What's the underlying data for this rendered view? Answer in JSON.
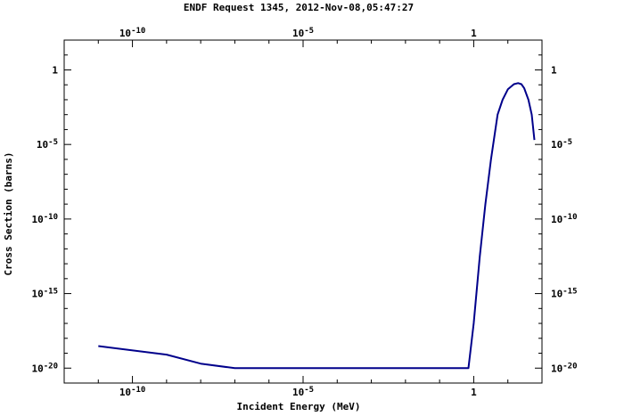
{
  "chart_data": {
    "type": "line",
    "title": "ENDF Request 1345, 2012-Nov-08,05:47:27",
    "xlabel": "Incident Energy (MeV)",
    "ylabel": "Cross Section (barns)",
    "x_scale": "log",
    "y_scale": "log",
    "xlim": [
      1e-12,
      100
    ],
    "ylim": [
      1e-21,
      100
    ],
    "grid": false,
    "x_ticks": [
      {
        "exp": "-10",
        "value": 1e-10
      },
      {
        "exp": "-5",
        "value": 1e-05
      },
      {
        "exp": "",
        "value": 1
      }
    ],
    "y_ticks": [
      {
        "exp": "",
        "value": 1
      },
      {
        "exp": "-5",
        "value": 1e-05
      },
      {
        "exp": "-10",
        "value": 1e-10
      },
      {
        "exp": "-15",
        "value": 1e-15
      },
      {
        "exp": "-20",
        "value": 1e-20
      }
    ],
    "series": [
      {
        "color": "#00008b",
        "x": [
          1e-11,
          1e-09,
          1e-08,
          1e-07,
          0.7,
          1.0,
          1.5,
          2.2,
          3.2,
          5,
          7,
          10,
          15,
          20,
          25,
          30,
          40,
          50,
          60
        ],
        "y": [
          3e-19,
          8e-20,
          2e-20,
          1e-20,
          1e-20,
          1e-17,
          3e-13,
          1e-09,
          1e-06,
          0.001,
          0.01,
          0.05,
          0.11,
          0.13,
          0.11,
          0.06,
          0.01,
          0.001,
          2e-05
        ]
      }
    ]
  }
}
